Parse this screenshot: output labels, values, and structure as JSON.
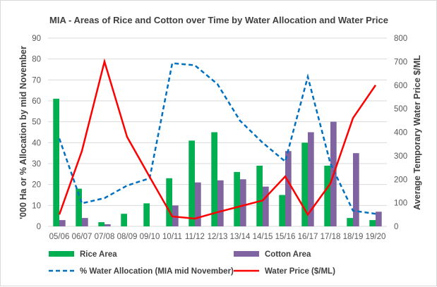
{
  "chart_data": {
    "type": "bar+line",
    "title": "MIA - Areas of Rice and Cotton over Time by Water Allocation and Water Price",
    "ylabel": "'000 Ha  or  % Allocation by mid November",
    "y2label": "Average Temporary Water Price $/ML",
    "ylim": [
      0,
      90
    ],
    "y2lim": [
      0,
      800
    ],
    "yticks": [
      0,
      10,
      20,
      30,
      40,
      50,
      60,
      70,
      80,
      90
    ],
    "y2ticks": [
      0,
      100,
      200,
      300,
      400,
      500,
      600,
      700,
      800
    ],
    "grid": true,
    "legend_position": "bottom",
    "categories": [
      "05/06",
      "06/07",
      "07/08",
      "08/09",
      "09/10",
      "10/11",
      "11/12",
      "12/13",
      "13/14",
      "14/15",
      "15/16",
      "16/17",
      "17/18",
      "18/19",
      "19/20"
    ],
    "series": [
      {
        "name": "Rice Area",
        "type": "bar",
        "axis": "left",
        "color": "#00b050",
        "values": [
          61,
          18,
          2,
          6,
          11,
          23,
          41,
          45,
          26,
          29,
          15,
          40,
          29,
          4,
          3
        ]
      },
      {
        "name": "Cotton Area",
        "type": "bar",
        "axis": "left",
        "color": "#8064a2",
        "values": [
          3,
          4,
          1,
          0,
          0,
          10,
          21,
          22,
          22.5,
          19,
          36,
          45,
          50,
          35,
          7
        ]
      },
      {
        "name": "% Water Allocation (MIA mid November)",
        "type": "line",
        "style": "dashed",
        "axis": "left",
        "color": "#0070c0",
        "values": [
          42,
          11,
          13.5,
          19.5,
          23,
          78,
          77,
          68,
          50.5,
          40,
          31,
          71.5,
          30,
          7.5,
          6
        ]
      },
      {
        "name": "Water Price ($/ML)",
        "type": "line",
        "style": "solid",
        "axis": "right",
        "color": "#ff0000",
        "values": [
          50,
          320,
          700,
          380,
          210,
          42,
          33,
          60,
          85,
          110,
          212,
          50,
          182,
          460,
          600
        ]
      }
    ]
  }
}
